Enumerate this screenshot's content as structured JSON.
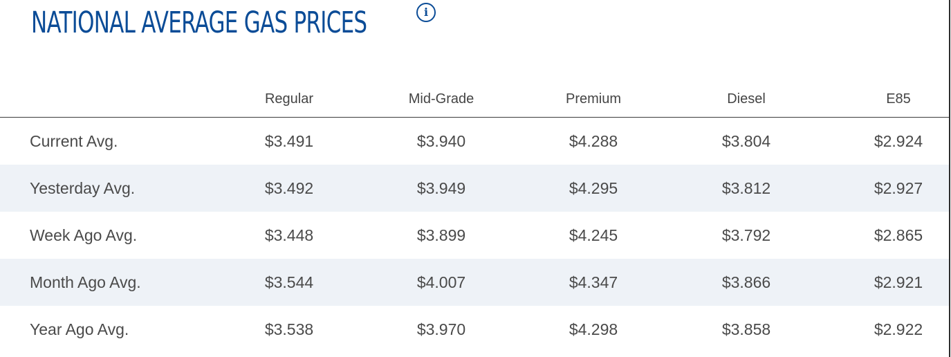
{
  "title": "NATIONAL AVERAGE GAS PRICES",
  "info_icon": "info-icon",
  "colors": {
    "title": "#0b4c97",
    "alt_row": "#eef2f7",
    "text": "#4a4a4a"
  },
  "table": {
    "columns": [
      "Regular",
      "Mid-Grade",
      "Premium",
      "Diesel",
      "E85"
    ],
    "rows": [
      {
        "label": "Current Avg.",
        "values": [
          "$3.491",
          "$3.940",
          "$4.288",
          "$3.804",
          "$2.924"
        ]
      },
      {
        "label": "Yesterday Avg.",
        "values": [
          "$3.492",
          "$3.949",
          "$4.295",
          "$3.812",
          "$2.927"
        ]
      },
      {
        "label": "Week Ago Avg.",
        "values": [
          "$3.448",
          "$3.899",
          "$4.245",
          "$3.792",
          "$2.865"
        ]
      },
      {
        "label": "Month Ago Avg.",
        "values": [
          "$3.544",
          "$4.007",
          "$4.347",
          "$3.866",
          "$2.921"
        ]
      },
      {
        "label": "Year Ago Avg.",
        "values": [
          "$3.538",
          "$3.970",
          "$4.298",
          "$3.858",
          "$2.922"
        ]
      }
    ]
  }
}
